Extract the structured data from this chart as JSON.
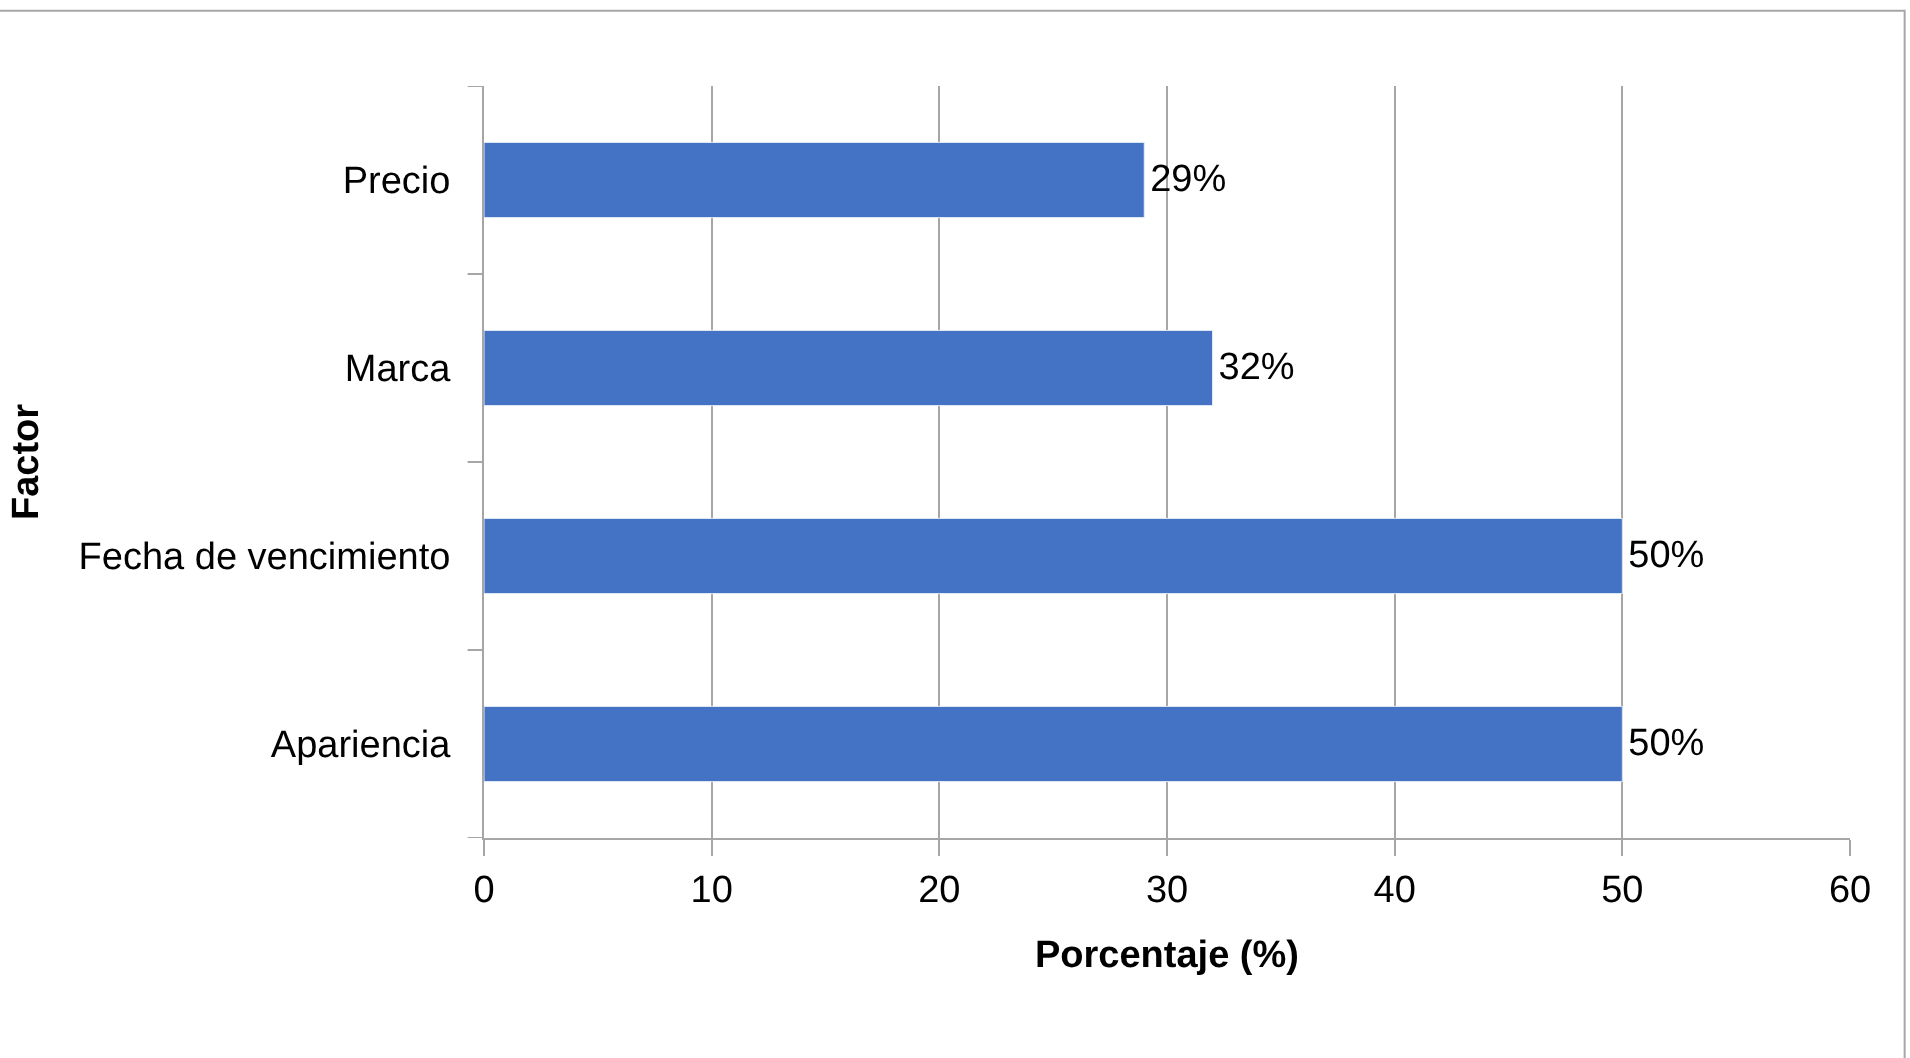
{
  "chart_data": {
    "type": "bar",
    "orientation": "horizontal",
    "categories": [
      "Precio",
      "Marca",
      "Fecha de vencimiento",
      "Apariencia"
    ],
    "values": [
      29,
      32,
      50,
      50
    ],
    "value_labels": [
      "29%",
      "32%",
      "50%",
      "50%"
    ],
    "color": "#4472c4",
    "xlabel": "Porcentaje (%)",
    "ylabel": "Factor",
    "xlim": [
      0,
      60
    ],
    "xticks": [
      0,
      10,
      20,
      30,
      40,
      50,
      60
    ],
    "grid": "x",
    "legend": false
  }
}
